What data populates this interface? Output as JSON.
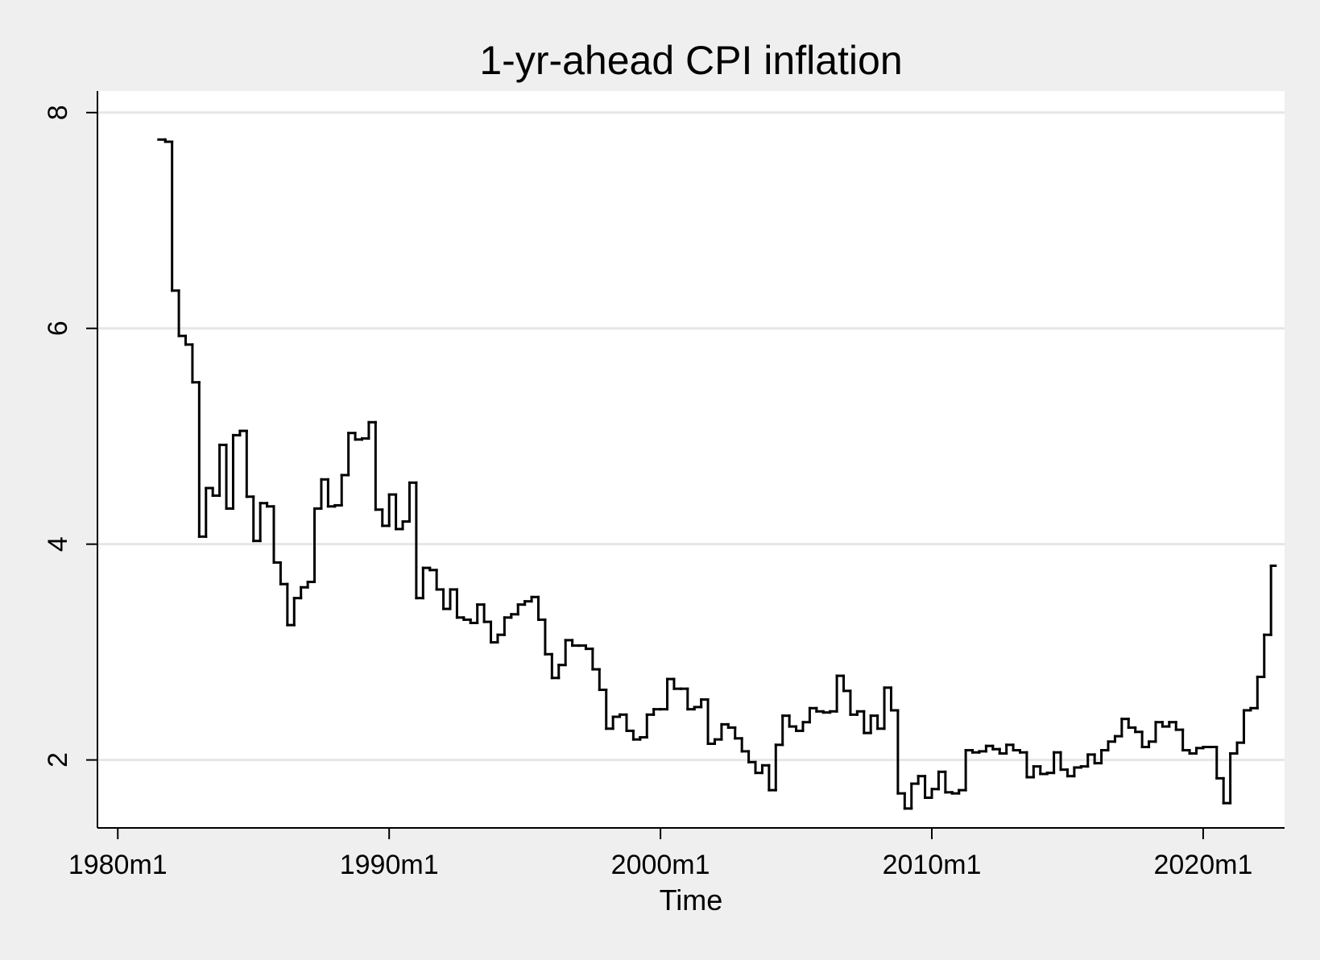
{
  "chart_data": {
    "type": "step-line",
    "title": "1-yr-ahead CPI inflation",
    "x_label": "Time",
    "x": [
      "1981m7",
      "1981m10",
      "1982m1",
      "1982m4",
      "1982m7",
      "1982m10",
      "1983m1",
      "1983m4",
      "1983m7",
      "1983m10",
      "1984m1",
      "1984m4",
      "1984m7",
      "1984m10",
      "1985m1",
      "1985m4",
      "1985m7",
      "1985m10",
      "1986m1",
      "1986m4",
      "1986m7",
      "1986m10",
      "1987m1",
      "1987m4",
      "1987m7",
      "1987m10",
      "1988m1",
      "1988m4",
      "1988m7",
      "1988m10",
      "1989m1",
      "1989m4",
      "1989m7",
      "1989m10",
      "1990m1",
      "1990m4",
      "1990m7",
      "1990m10",
      "1991m1",
      "1991m4",
      "1991m7",
      "1991m10",
      "1992m1",
      "1992m4",
      "1992m7",
      "1992m10",
      "1993m1",
      "1993m4",
      "1993m7",
      "1993m10",
      "1994m1",
      "1994m4",
      "1994m7",
      "1994m10",
      "1995m1",
      "1995m4",
      "1995m7",
      "1995m10",
      "1996m1",
      "1996m4",
      "1996m7",
      "1996m10",
      "1997m1",
      "1997m4",
      "1997m7",
      "1997m10",
      "1998m1",
      "1998m4",
      "1998m7",
      "1998m10",
      "1999m1",
      "1999m4",
      "1999m7",
      "1999m10",
      "2000m1",
      "2000m4",
      "2000m7",
      "2000m10",
      "2001m1",
      "2001m4",
      "2001m7",
      "2001m10",
      "2002m1",
      "2002m4",
      "2002m7",
      "2002m10",
      "2003m1",
      "2003m4",
      "2003m7",
      "2003m10",
      "2004m1",
      "2004m4",
      "2004m7",
      "2004m10",
      "2005m1",
      "2005m4",
      "2005m7",
      "2005m10",
      "2006m1",
      "2006m4",
      "2006m7",
      "2006m10",
      "2007m1",
      "2007m4",
      "2007m7",
      "2007m10",
      "2008m1",
      "2008m4",
      "2008m7",
      "2008m10",
      "2009m1",
      "2009m4",
      "2009m7",
      "2009m10",
      "2010m1",
      "2010m4",
      "2010m7",
      "2010m10",
      "2011m1",
      "2011m4",
      "2011m7",
      "2011m10",
      "2012m1",
      "2012m4",
      "2012m7",
      "2012m10",
      "2013m1",
      "2013m4",
      "2013m7",
      "2013m10",
      "2014m1",
      "2014m4",
      "2014m7",
      "2014m10",
      "2015m1",
      "2015m4",
      "2015m7",
      "2015m10",
      "2016m1",
      "2016m4",
      "2016m7",
      "2016m10",
      "2017m1",
      "2017m4",
      "2017m7",
      "2017m10",
      "2018m1",
      "2018m4",
      "2018m7",
      "2018m10",
      "2019m1",
      "2019m4",
      "2019m7",
      "2019m10",
      "2020m1",
      "2020m4",
      "2020m7",
      "2020m10",
      "2021m1",
      "2021m4",
      "2021m7",
      "2021m10",
      "2022m1",
      "2022m4",
      "2022m7"
    ],
    "series": [
      {
        "color": "#000000",
        "values": [
          7.75,
          7.73,
          6.35,
          5.93,
          5.85,
          5.5,
          4.07,
          4.52,
          4.45,
          4.92,
          4.33,
          5.01,
          5.05,
          4.44,
          4.03,
          4.38,
          4.35,
          3.83,
          3.63,
          3.25,
          3.5,
          3.6,
          3.65,
          4.33,
          4.6,
          4.35,
          4.36,
          4.64,
          5.03,
          4.97,
          4.98,
          5.13,
          4.32,
          4.17,
          4.46,
          4.14,
          4.21,
          4.57,
          3.5,
          3.78,
          3.76,
          3.58,
          3.4,
          3.58,
          3.32,
          3.3,
          3.27,
          3.44,
          3.28,
          3.09,
          3.16,
          3.32,
          3.35,
          3.44,
          3.47,
          3.51,
          3.3,
          2.98,
          2.76,
          2.88,
          3.11,
          3.06,
          3.06,
          3.03,
          2.84,
          2.65,
          2.29,
          2.4,
          2.42,
          2.27,
          2.19,
          2.21,
          2.42,
          2.47,
          2.47,
          2.75,
          2.66,
          2.66,
          2.47,
          2.49,
          2.56,
          2.15,
          2.19,
          2.33,
          2.3,
          2.2,
          2.08,
          1.98,
          1.88,
          1.95,
          1.72,
          2.14,
          2.41,
          2.31,
          2.27,
          2.35,
          2.48,
          2.45,
          2.44,
          2.45,
          2.78,
          2.64,
          2.42,
          2.45,
          2.25,
          2.41,
          2.29,
          2.67,
          2.46,
          1.69,
          1.55,
          1.78,
          1.85,
          1.65,
          1.73,
          1.89,
          1.7,
          1.69,
          1.72,
          2.09,
          2.07,
          2.08,
          2.13,
          2.1,
          2.06,
          2.14,
          2.09,
          2.07,
          1.84,
          1.94,
          1.87,
          1.88,
          2.07,
          1.91,
          1.85,
          1.93,
          1.94,
          2.05,
          1.97,
          2.09,
          2.17,
          2.22,
          2.38,
          2.3,
          2.26,
          2.12,
          2.17,
          2.35,
          2.31,
          2.35,
          2.28,
          2.09,
          2.06,
          2.11,
          2.12,
          2.12,
          1.83,
          1.6,
          2.06,
          2.16,
          2.46,
          2.48,
          2.77,
          3.16,
          3.8
        ]
      }
    ],
    "xlim": [
      "1979m4",
      "2023m1"
    ],
    "xticks": [
      "1980m1",
      "1990m1",
      "2000m1",
      "2010m1",
      "2020m1"
    ],
    "ylim": [
      1.37,
      8.2
    ],
    "yticks": [
      2,
      4,
      6,
      8
    ],
    "grid": true
  }
}
